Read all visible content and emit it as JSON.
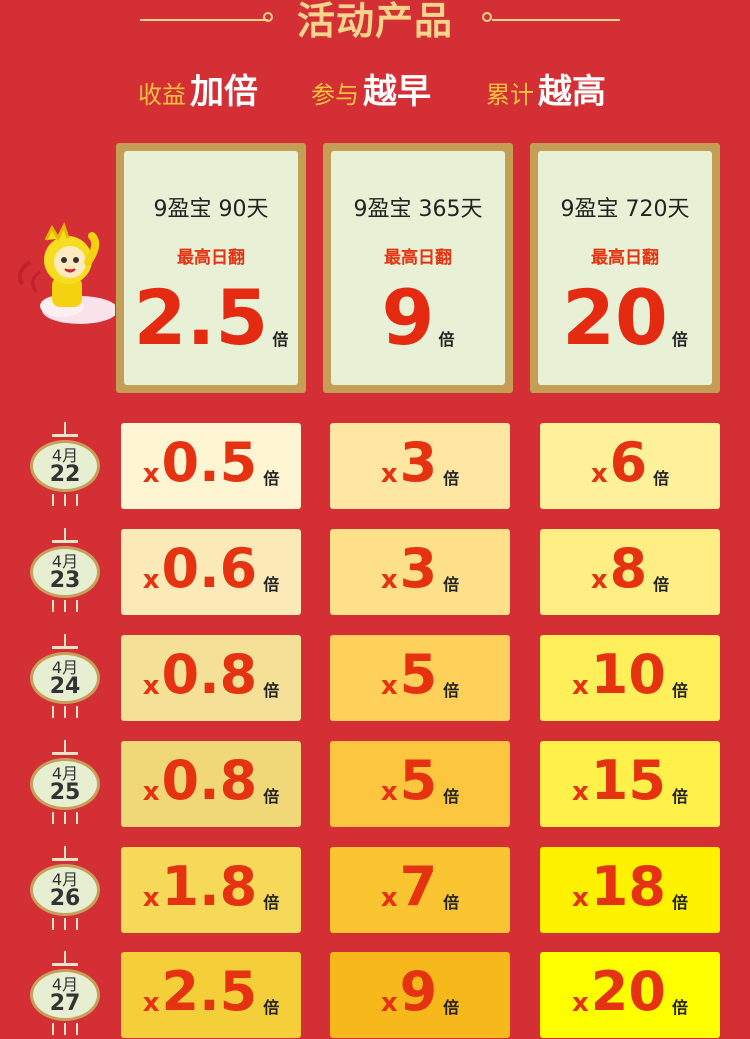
{
  "header": {
    "title": "活动产品",
    "slogans": [
      {
        "small": "收益",
        "big": "加倍"
      },
      {
        "small": "参与",
        "big": "越早"
      },
      {
        "small": "累计",
        "big": "越高"
      }
    ]
  },
  "products": [
    {
      "name": "9盈宝 90天",
      "sub": "最高日翻",
      "value": "2.5",
      "unit": "倍"
    },
    {
      "name": "9盈宝 365天",
      "sub": "最高日翻",
      "value": "9",
      "unit": "倍"
    },
    {
      "name": "9盈宝 720天",
      "sub": "最高日翻",
      "value": "20",
      "unit": "倍"
    }
  ],
  "schedule": [
    {
      "month": "4月",
      "day": "22",
      "cells": [
        {
          "prefix": "x",
          "value": "0.5",
          "unit": "倍",
          "color": "#fff5d3"
        },
        {
          "prefix": "x",
          "value": "3",
          "unit": "倍",
          "color": "#ffe6a2"
        },
        {
          "prefix": "x",
          "value": "6",
          "unit": "倍",
          "color": "#fff09c"
        }
      ]
    },
    {
      "month": "4月",
      "day": "23",
      "cells": [
        {
          "prefix": "x",
          "value": "0.6",
          "unit": "倍",
          "color": "#fbeab8"
        },
        {
          "prefix": "x",
          "value": "3",
          "unit": "倍",
          "color": "#ffe08a"
        },
        {
          "prefix": "x",
          "value": "8",
          "unit": "倍",
          "color": "#ffee84"
        }
      ]
    },
    {
      "month": "4月",
      "day": "24",
      "cells": [
        {
          "prefix": "x",
          "value": "0.8",
          "unit": "倍",
          "color": "#f4e096"
        },
        {
          "prefix": "x",
          "value": "5",
          "unit": "倍",
          "color": "#ffd15a"
        },
        {
          "prefix": "x",
          "value": "10",
          "unit": "倍",
          "color": "#ffef5a"
        }
      ]
    },
    {
      "month": "4月",
      "day": "25",
      "cells": [
        {
          "prefix": "x",
          "value": "0.8",
          "unit": "倍",
          "color": "#f0d879"
        },
        {
          "prefix": "x",
          "value": "5",
          "unit": "倍",
          "color": "#fcc73f"
        },
        {
          "prefix": "x",
          "value": "15",
          "unit": "倍",
          "color": "#fff04a"
        }
      ]
    },
    {
      "month": "4月",
      "day": "26",
      "cells": [
        {
          "prefix": "x",
          "value": "1.8",
          "unit": "倍",
          "color": "#f7d95a"
        },
        {
          "prefix": "x",
          "value": "7",
          "unit": "倍",
          "color": "#fbc531"
        },
        {
          "prefix": "x",
          "value": "18",
          "unit": "倍",
          "color": "#fff200"
        }
      ]
    },
    {
      "month": "4月",
      "day": "27",
      "cells": [
        {
          "prefix": "x",
          "value": "2.5",
          "unit": "倍",
          "color": "#f5cf3a"
        },
        {
          "prefix": "x",
          "value": "9",
          "unit": "倍",
          "color": "#f6b81a"
        },
        {
          "prefix": "x",
          "value": "20",
          "unit": "倍",
          "color": "#ffff00"
        }
      ]
    }
  ],
  "colors": {
    "background": "#d32f35",
    "gold": "#c59e55",
    "title": "#f7d48b",
    "highlight": "#e53312"
  }
}
